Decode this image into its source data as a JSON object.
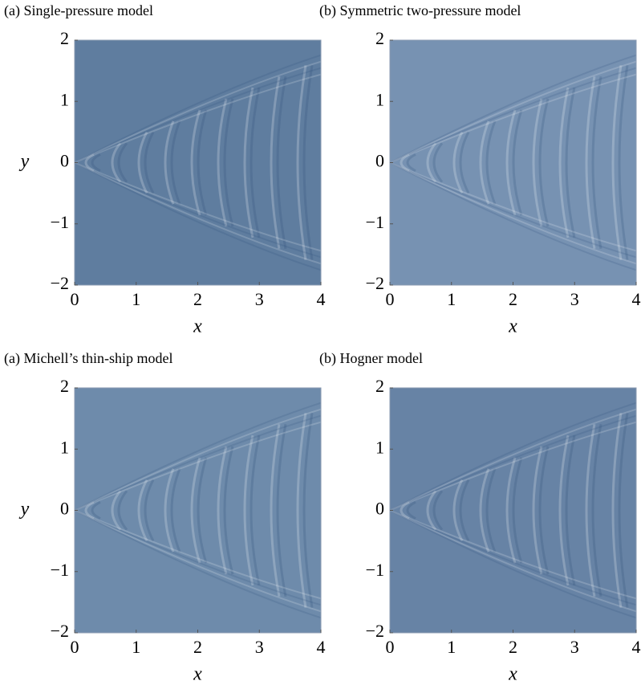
{
  "chart_data": [
    {
      "type": "heatmap",
      "title": "(a) Single-pressure model",
      "xlabel": "x",
      "ylabel": "y",
      "color": "#5f7d9f",
      "xlim": [
        0,
        4
      ],
      "ylim": [
        -2,
        2
      ],
      "xticks": [
        0,
        1,
        2,
        3,
        4
      ],
      "yticks": [
        {
          "value": -2,
          "label": "−2"
        },
        {
          "value": -1,
          "label": "−1"
        },
        0,
        1,
        2
      ]
    },
    {
      "type": "heatmap",
      "title": "(b) Symmetric two-pressure model",
      "xlabel": "x",
      "color": "#7792b2",
      "xlim": [
        0,
        4
      ],
      "ylim": [
        -2,
        2
      ],
      "xticks": [
        0,
        1,
        2,
        3,
        4
      ],
      "yticks": [
        {
          "value": -2,
          "label": "−2"
        },
        {
          "value": -1,
          "label": "−1"
        },
        0,
        1,
        2
      ]
    },
    {
      "type": "heatmap",
      "title": "(a) Michell’s thin-ship model",
      "xlabel": "x",
      "ylabel": "y",
      "color": "#6e8bab",
      "xlim": [
        0,
        4
      ],
      "ylim": [
        -2,
        2
      ],
      "xticks": [
        0,
        1,
        2,
        3,
        4
      ],
      "yticks": [
        {
          "value": -2,
          "label": "−2"
        },
        {
          "value": -1,
          "label": "−1"
        },
        0,
        1,
        2
      ]
    },
    {
      "type": "heatmap",
      "title": "(b) Hogner model",
      "xlabel": "x",
      "color": "#6783a5",
      "xlim": [
        0,
        4
      ],
      "ylim": [
        -2,
        2
      ],
      "xticks": [
        0,
        1,
        2,
        3,
        4
      ],
      "yticks": [
        {
          "value": -2,
          "label": "−2"
        },
        {
          "value": -1,
          "label": "−1"
        },
        0,
        1,
        2
      ]
    }
  ]
}
